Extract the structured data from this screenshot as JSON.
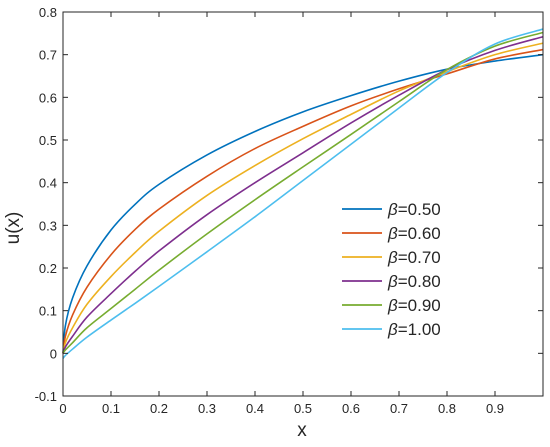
{
  "chart_data": {
    "type": "line",
    "xlabel": "x",
    "ylabel": "u(x)",
    "xlim": [
      0,
      1
    ],
    "ylim": [
      -0.1,
      0.8
    ],
    "xticks": [
      "0",
      "0.1",
      "0.2",
      "0.3",
      "0.4",
      "0.5",
      "0.6",
      "0.7",
      "0.8",
      "0.9"
    ],
    "yticks": [
      "-0.1",
      "0",
      "0.1",
      "0.2",
      "0.3",
      "0.4",
      "0.5",
      "0.6",
      "0.7",
      "0.8"
    ],
    "xtick_values": [
      0,
      0.1,
      0.2,
      0.3,
      0.4,
      0.5,
      0.6,
      0.7,
      0.8,
      0.9
    ],
    "ytick_values": [
      -0.1,
      0,
      0.1,
      0.2,
      0.3,
      0.4,
      0.5,
      0.6,
      0.7,
      0.8
    ],
    "legend_position": "right-center",
    "grid": false,
    "x": [
      0,
      0.005,
      0.02,
      0.05,
      0.1,
      0.15,
      0.2,
      0.3,
      0.4,
      0.5,
      0.6,
      0.7,
      0.8,
      0.9,
      1.0
    ],
    "series": [
      {
        "name": "β=0.50",
        "symbol": "β",
        "value_text": "=0.50",
        "color": "#0072BD",
        "values": [
          0.0,
          0.065,
          0.13,
          0.205,
          0.289,
          0.349,
          0.396,
          0.465,
          0.52,
          0.566,
          0.604,
          0.638,
          0.666,
          0.685,
          0.7
        ]
      },
      {
        "name": "β=0.60",
        "symbol": "β",
        "value_text": "=0.60",
        "color": "#D95319",
        "values": [
          0.0,
          0.04,
          0.09,
          0.155,
          0.231,
          0.29,
          0.338,
          0.415,
          0.48,
          0.532,
          0.58,
          0.62,
          0.655,
          0.69,
          0.712
        ]
      },
      {
        "name": "β=0.70",
        "symbol": "β",
        "value_text": "=0.70",
        "color": "#EDB120",
        "values": [
          0.0,
          0.025,
          0.06,
          0.115,
          0.18,
          0.236,
          0.286,
          0.37,
          0.44,
          0.503,
          0.56,
          0.615,
          0.66,
          0.7,
          0.727
        ]
      },
      {
        "name": "β=0.80",
        "symbol": "β",
        "value_text": "=0.80",
        "color": "#7E2F8E",
        "values": [
          0.0,
          0.015,
          0.04,
          0.085,
          0.14,
          0.192,
          0.24,
          0.325,
          0.4,
          0.47,
          0.54,
          0.605,
          0.665,
          0.71,
          0.742
        ]
      },
      {
        "name": "β=0.90",
        "symbol": "β",
        "value_text": "=0.90",
        "color": "#77AC30",
        "values": [
          0.0,
          0.008,
          0.025,
          0.06,
          0.105,
          0.15,
          0.195,
          0.28,
          0.36,
          0.437,
          0.513,
          0.59,
          0.665,
          0.72,
          0.752
        ]
      },
      {
        "name": "β=1.00",
        "symbol": "β",
        "value_text": "=1.00",
        "color": "#4DBEEE",
        "values": [
          -0.012,
          -0.005,
          0.01,
          0.038,
          0.078,
          0.117,
          0.157,
          0.238,
          0.32,
          0.405,
          0.49,
          0.575,
          0.658,
          0.725,
          0.76
        ]
      }
    ]
  }
}
